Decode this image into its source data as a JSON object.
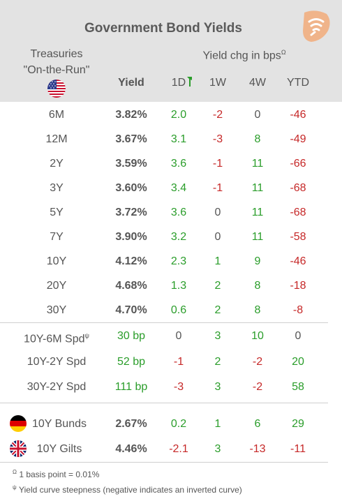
{
  "title": "Government Bond Yields",
  "treasuries_line1": "Treasuries",
  "treasuries_line2": "\"On-the-Run\"",
  "chg_title": "Yield chg in bps",
  "chg_title_sup": "Ω",
  "columns": {
    "yield": "Yield",
    "d1": "1D",
    "w1": "1W",
    "w4": "4W",
    "ytd": "YTD"
  },
  "treasuries": [
    {
      "label": "6M",
      "yield": "3.82%",
      "d1": "2.0",
      "w1": "-2",
      "w4": "0",
      "ytd": "-46"
    },
    {
      "label": "12M",
      "yield": "3.67%",
      "d1": "3.1",
      "w1": "-3",
      "w4": "8",
      "ytd": "-49"
    },
    {
      "label": "2Y",
      "yield": "3.59%",
      "d1": "3.6",
      "w1": "-1",
      "w4": "11",
      "ytd": "-66"
    },
    {
      "label": "3Y",
      "yield": "3.60%",
      "d1": "3.4",
      "w1": "-1",
      "w4": "11",
      "ytd": "-68"
    },
    {
      "label": "5Y",
      "yield": "3.72%",
      "d1": "3.6",
      "w1": "0",
      "w4": "11",
      "ytd": "-68"
    },
    {
      "label": "7Y",
      "yield": "3.90%",
      "d1": "3.2",
      "w1": "0",
      "w4": "11",
      "ytd": "-58"
    },
    {
      "label": "10Y",
      "yield": "4.12%",
      "d1": "2.3",
      "w1": "1",
      "w4": "9",
      "ytd": "-46"
    },
    {
      "label": "20Y",
      "yield": "4.68%",
      "d1": "1.3",
      "w1": "2",
      "w4": "8",
      "ytd": "-18"
    },
    {
      "label": "30Y",
      "yield": "4.70%",
      "d1": "0.6",
      "w1": "2",
      "w4": "8",
      "ytd": "-8"
    }
  ],
  "spreads": [
    {
      "label": "10Y-6M Spd",
      "label_sup": "ψ",
      "value": "30 bp",
      "d1": "0",
      "w1": "3",
      "w4": "10",
      "ytd": "0"
    },
    {
      "label": "10Y-2Y Spd",
      "label_sup": "",
      "value": "52 bp",
      "d1": "-1",
      "w1": "2",
      "w4": "-2",
      "ytd": "20"
    },
    {
      "label": "30Y-2Y Spd",
      "label_sup": "",
      "value": "111 bp",
      "d1": "-3",
      "w1": "3",
      "w4": "-2",
      "ytd": "58"
    }
  ],
  "foreign": [
    {
      "label": "10Y Bunds",
      "flag": "germany-flag-icon",
      "yield": "2.67%",
      "d1": "0.2",
      "w1": "1",
      "w4": "6",
      "ytd": "29"
    },
    {
      "label": "10Y Gilts",
      "flag": "uk-flag-icon",
      "yield": "4.46%",
      "d1": "-2.1",
      "w1": "3",
      "w4": "-13",
      "ytd": "-11"
    }
  ],
  "footnotes": [
    {
      "sym": "Ω",
      "text": "1 basis point = 0.01%"
    },
    {
      "sym": "ψ",
      "text": "Yield curve steepness (negative indicates an inverted curve)"
    }
  ],
  "colors": {
    "positive": "#2a9d2a",
    "negative": "#c62828",
    "neutral": "#555555",
    "header_bg": "#e3e3e3",
    "logo": "#f0b48a"
  },
  "icons": {
    "logo": "signal-logo-icon",
    "us_flag": "us-flag-icon",
    "sort": "sort-indicator-icon"
  }
}
